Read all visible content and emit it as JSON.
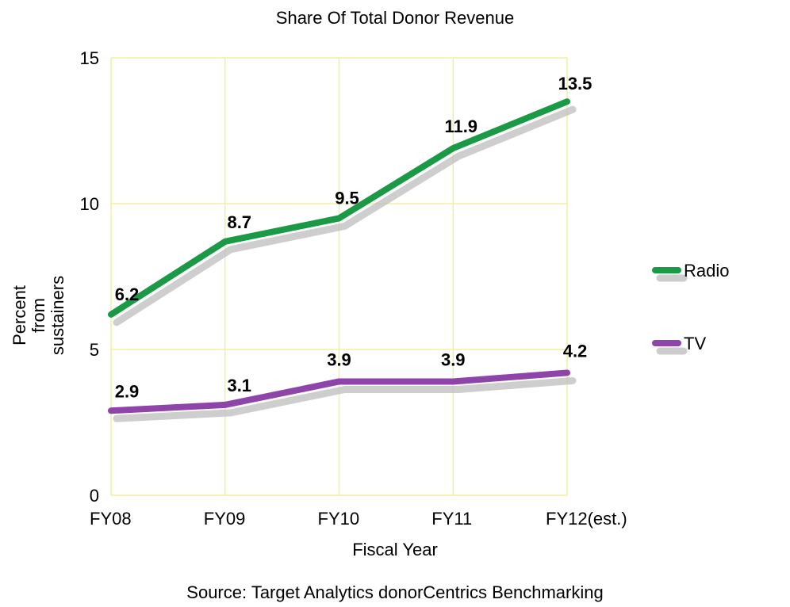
{
  "chart_data": {
    "type": "line",
    "title": "Share Of Total Donor Revenue",
    "xlabel": "Fiscal Year",
    "ylabel_lines": [
      "Percent",
      "from",
      "sustainers"
    ],
    "categories": [
      "FY08",
      "FY09",
      "FY10",
      "FY11",
      "FY12(est.)"
    ],
    "ylim": [
      0,
      15
    ],
    "yticks": [
      0,
      5,
      10,
      15
    ],
    "grid": true,
    "legend_position": "right",
    "series": [
      {
        "name": "Radio",
        "color": "#1a9a45",
        "values": [
          6.2,
          8.7,
          9.5,
          11.9,
          13.5
        ],
        "labels": [
          "6.2",
          "8.7",
          "9.5",
          "11.9",
          "13.5"
        ]
      },
      {
        "name": "TV",
        "color": "#8e44a8",
        "values": [
          2.9,
          3.1,
          3.9,
          3.9,
          4.2
        ],
        "labels": [
          "2.9",
          "3.1",
          "3.9",
          "3.9",
          "4.2"
        ]
      }
    ],
    "source": "Source: Target Analytics donorCentrics Benchmarking"
  },
  "colors": {
    "grid": "#f0f0a0",
    "shadow": "#bdbdbd"
  }
}
